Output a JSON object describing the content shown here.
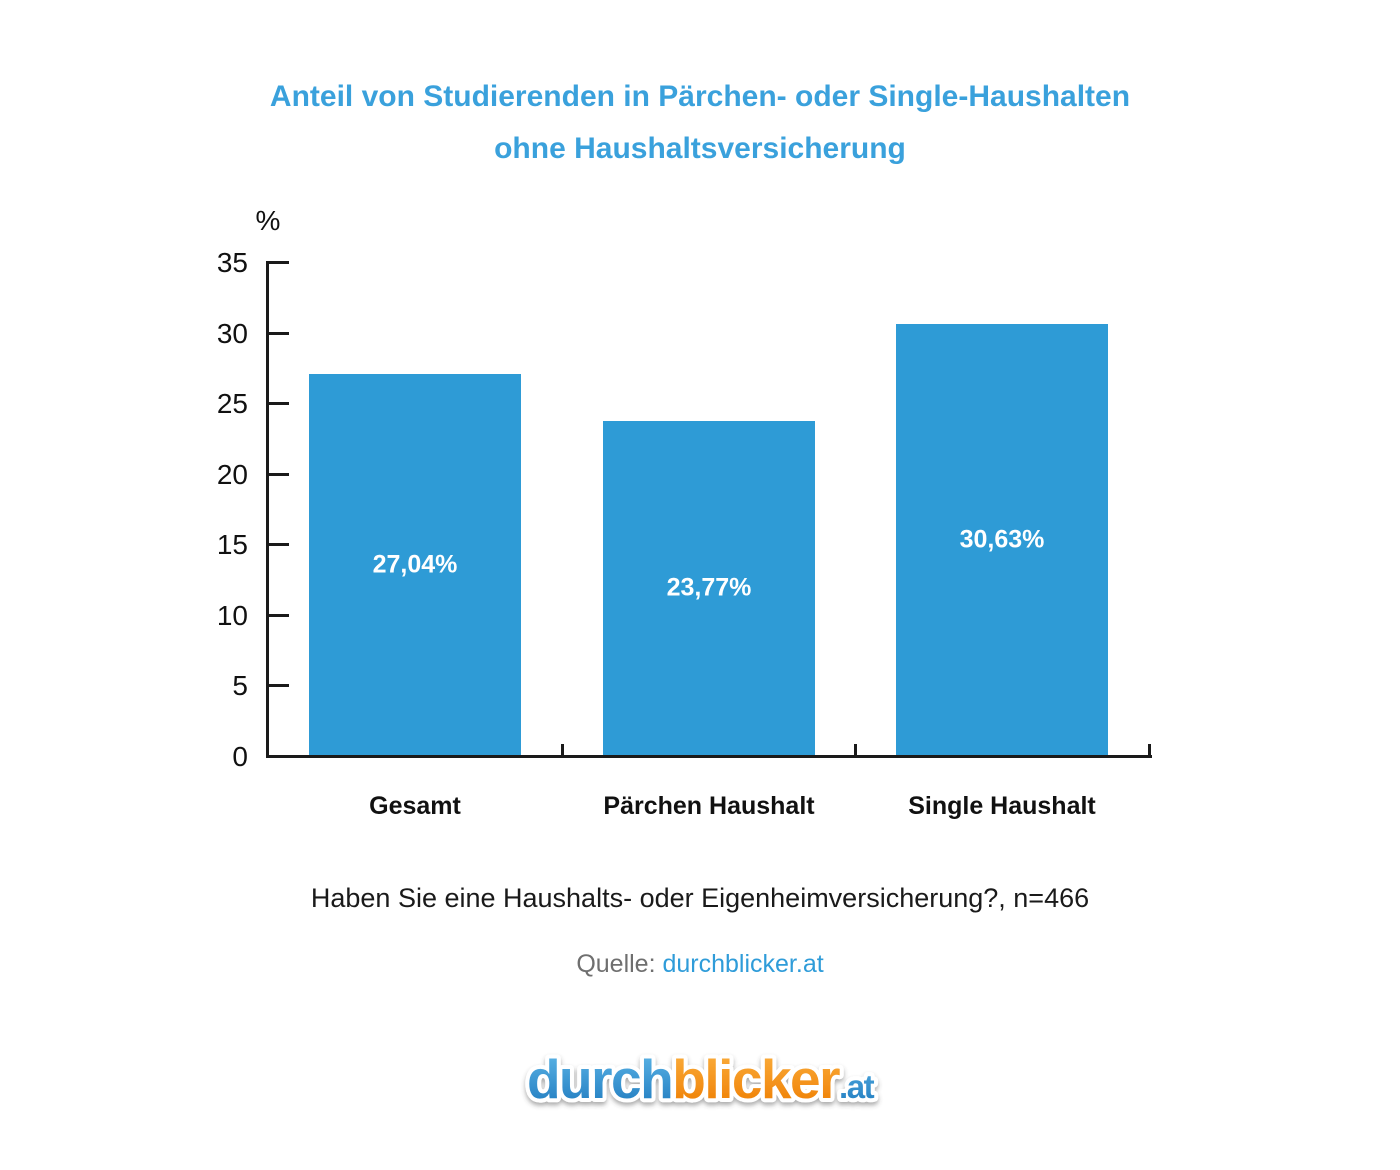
{
  "title": {
    "line1": "Anteil von Studierenden in Pärchen- oder Single-Haushalten",
    "line2": "ohne Haushaltsversicherung"
  },
  "chart_data": {
    "type": "bar",
    "title": "Anteil von Studierenden in Pärchen- oder Single-Haushalten ohne Haushaltsversicherung",
    "categories": [
      "Gesamt",
      "Pärchen Haushalt",
      "Single Haushalt"
    ],
    "values": [
      27.04,
      23.77,
      30.63
    ],
    "value_labels": [
      "27,04%",
      "23,77%",
      "30,63%"
    ],
    "xlabel": "",
    "ylabel": "%",
    "ylim": [
      0,
      35
    ],
    "yticks": [
      0,
      5,
      10,
      15,
      20,
      25,
      30,
      35
    ],
    "grid": false,
    "legend": false,
    "bar_color": "#2E9BD6"
  },
  "footer": {
    "question": "Haben Sie eine Haushalts- oder Eigenheimversicherung?, n=466",
    "source_label": "Quelle:",
    "source_link": "durchblicker.at"
  },
  "logo": {
    "word1": "durch",
    "word2": "blicker",
    "suffix": ".at"
  },
  "colors": {
    "title_blue": "#3AA1DC",
    "bar_blue": "#2E9BD6",
    "source_gray": "#6F6F6F",
    "source_link_blue": "#2F9CD9",
    "axis_black": "#1A1A1A",
    "logo_blue_top": "#5FB8E8",
    "logo_blue_bottom": "#1E79BE",
    "logo_orange_top": "#FBB040",
    "logo_orange_bottom": "#EE7C00"
  }
}
